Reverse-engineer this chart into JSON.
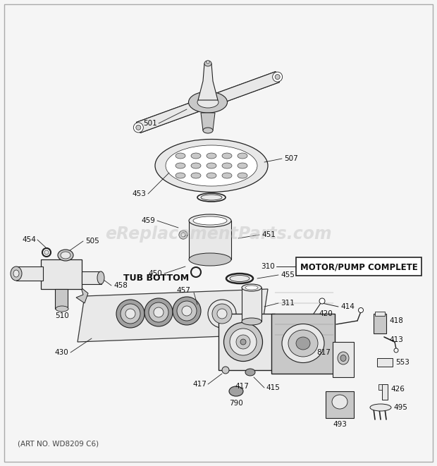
{
  "background_color": "#f5f5f5",
  "border_color": "#999999",
  "watermark_text": "eReplacementParts.com",
  "watermark_color": "#cccccc",
  "art_no": "(ART NO. WD8209 C6)",
  "motor_pump_label": "MOTOR/PUMP COMPLETE",
  "tub_bottom_label": "TUB BOTTOM",
  "line_color": "#222222",
  "fill_light": "#e8e8e8",
  "fill_mid": "#c8c8c8",
  "fill_dark": "#a0a0a0",
  "fig_width": 6.2,
  "fig_height": 6.61,
  "dpi": 100,
  "xlim": [
    0,
    620
  ],
  "ylim": [
    0,
    661
  ]
}
